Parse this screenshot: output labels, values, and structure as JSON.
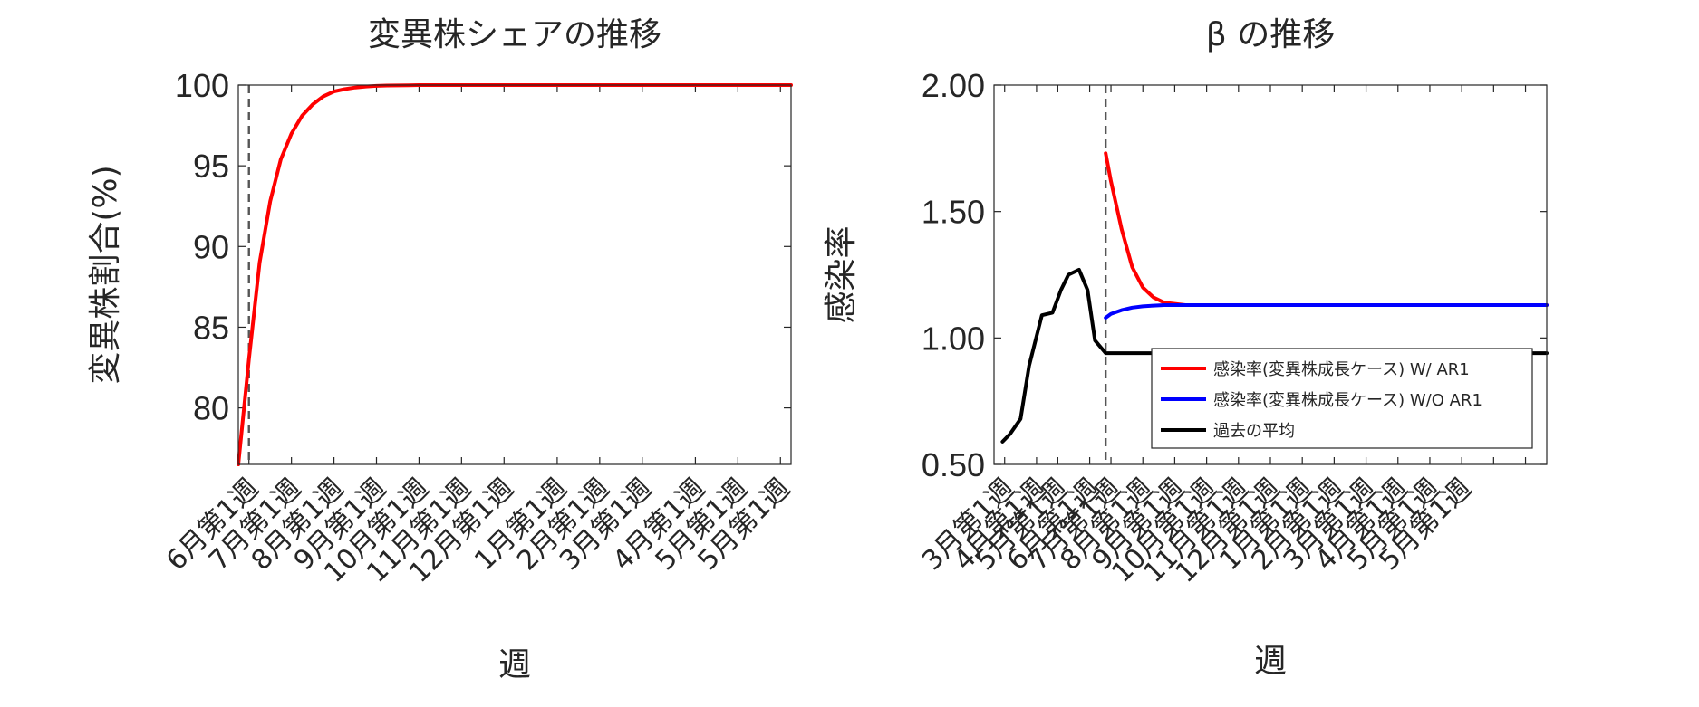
{
  "chart_data": [
    {
      "type": "line",
      "title": "変異株シェアの推移",
      "xlabel": "週",
      "ylabel": "変異株割合(%)",
      "ylim": [
        76.5,
        100
      ],
      "xlim": [
        0,
        52
      ],
      "yticks": [
        80,
        85,
        90,
        95,
        100
      ],
      "ytick_labels": [
        "80",
        "85",
        "90",
        "95",
        "100"
      ],
      "xticks": [
        1,
        5,
        9,
        13,
        17,
        21,
        25,
        30,
        34,
        38,
        43,
        47,
        51
      ],
      "xtick_labels": [
        "6月第1週",
        "7月第1週",
        "8月第1週",
        "9月第1週",
        "10月第1週",
        "11月第1週",
        "12月第1週",
        "1月第1週",
        "2月第1週",
        "3月第1週",
        "4月第1週",
        "5月第1週",
        "5月第1週"
      ],
      "vline_x": 1,
      "grid": false,
      "series": [
        {
          "color": "#ff0000",
          "x": [
            0,
            1,
            2,
            3,
            4,
            5,
            6,
            7,
            8,
            9,
            10,
            11,
            12,
            13,
            14,
            15,
            16,
            17,
            18,
            19,
            20,
            22,
            26,
            30,
            52
          ],
          "values": [
            76.5,
            83.0,
            89.0,
            92.8,
            95.4,
            97.0,
            98.1,
            98.8,
            99.3,
            99.6,
            99.75,
            99.85,
            99.91,
            99.95,
            99.97,
            99.98,
            99.99,
            100.0,
            100.0,
            100.0,
            100.0,
            100.0,
            100.0,
            100.0,
            100.0
          ]
        }
      ]
    },
    {
      "type": "line",
      "title": "β の推移",
      "xlabel": "週",
      "ylabel": "感染率",
      "ylim": [
        0.5,
        2.0
      ],
      "xlim": [
        0,
        52
      ],
      "yticks": [
        0.5,
        1.0,
        1.5,
        2.0
      ],
      "ytick_labels": [
        "0.50",
        "1.00",
        "1.50",
        "2.00"
      ],
      "xticks": [
        1,
        4,
        6,
        9,
        11,
        14,
        17,
        20,
        23,
        26,
        29,
        32,
        35,
        38,
        41,
        44,
        47,
        50
      ],
      "xtick_labels": [
        "3月第1週",
        "4月第1週",
        "5月第1週",
        "6月第1週",
        "7月第1週",
        "8月第1週",
        "9月第1週",
        "10月第1週",
        "11月第1週",
        "12月第1週",
        "1月第1週",
        "2月第1週",
        "3月第1週",
        "4月第1週",
        "5月第1週",
        "5月第1週",
        "",
        ""
      ],
      "vline_x": 10.5,
      "grid": false,
      "legend": "center-right",
      "series": [
        {
          "name": "感染率(変異株成長ケース) W/ AR1",
          "color": "#ff0000",
          "x": [
            10.5,
            11,
            12,
            13,
            14,
            15,
            16,
            17,
            18,
            20,
            52
          ],
          "values": [
            1.73,
            1.62,
            1.43,
            1.28,
            1.2,
            1.16,
            1.14,
            1.135,
            1.13,
            1.13,
            1.13
          ]
        },
        {
          "name": "感染率(変異株成長ケース) W/O AR1",
          "color": "#0000ff",
          "x": [
            10.5,
            11,
            12,
            13,
            14,
            15,
            16,
            17,
            18,
            20,
            52
          ],
          "values": [
            1.08,
            1.095,
            1.11,
            1.12,
            1.125,
            1.128,
            1.13,
            1.13,
            1.13,
            1.13,
            1.13
          ]
        },
        {
          "name": "過去の平均",
          "color": "#000000",
          "x": [
            0.8,
            1.5,
            2.5,
            3.3,
            4.5,
            5.5,
            6.3,
            7.0,
            8.0,
            8.8,
            9.5,
            10.5,
            52
          ],
          "values": [
            0.59,
            0.62,
            0.68,
            0.89,
            1.09,
            1.1,
            1.19,
            1.25,
            1.27,
            1.19,
            0.99,
            0.94,
            0.94
          ]
        }
      ]
    }
  ]
}
